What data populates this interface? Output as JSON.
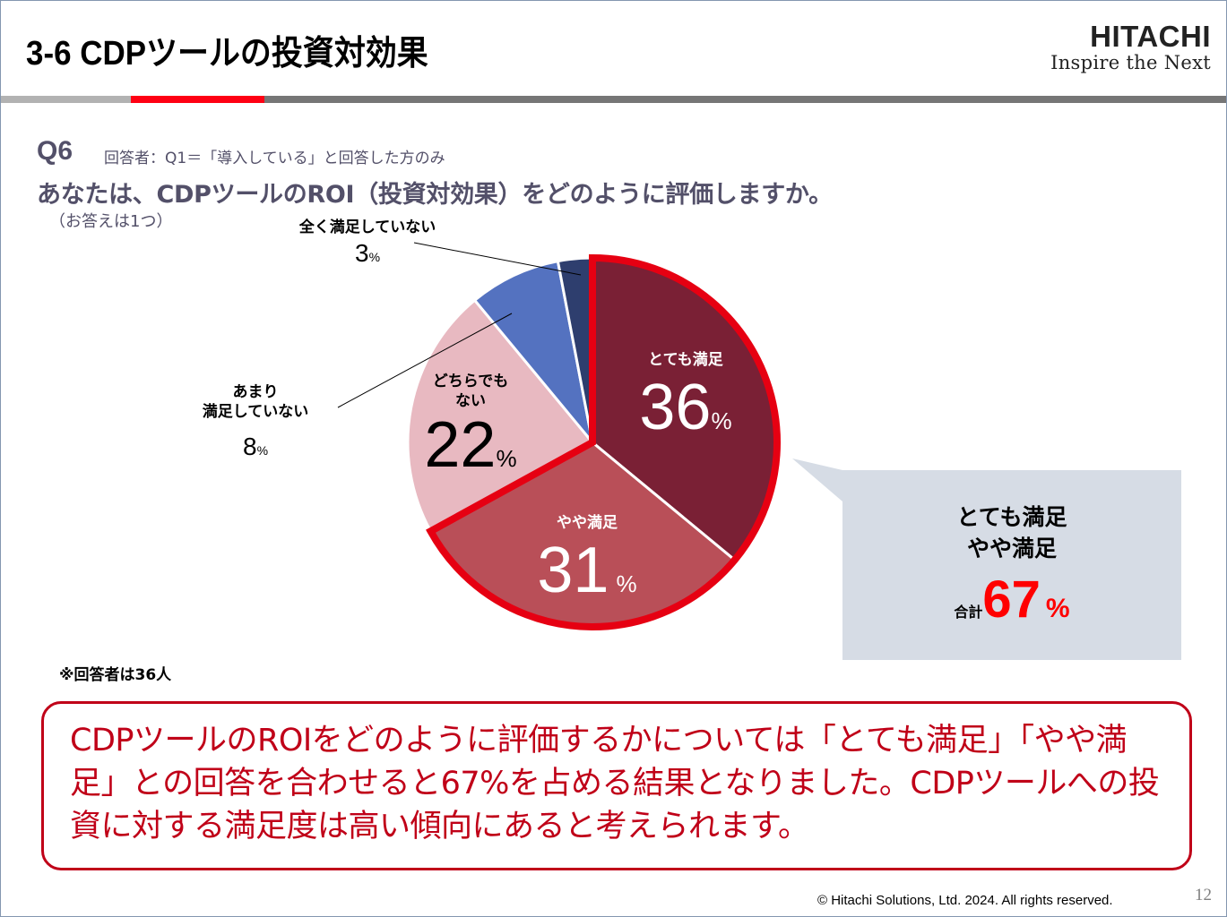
{
  "header": {
    "title": "3-6  CDPツールの投資対効果",
    "logo_main": "HITACHI",
    "logo_sub": "Inspire the Next"
  },
  "question": {
    "number": "Q6",
    "respondents_condition": "回答者：Q1＝「導入している」と回答した方のみ",
    "text": "あなたは、CDPツールのROI（投資対効果）をどのように評価しますか。",
    "note": "（お答えは1つ）"
  },
  "chart_data": {
    "type": "pie",
    "title": "あなたは、CDPツールのROI（投資対効果）をどのように評価しますか。",
    "unit": "%",
    "start_angle": "top, clockwise",
    "categories": [
      "とても満足",
      "やや満足",
      "どちらでもない",
      "あまり満足していない",
      "全く満足していない"
    ],
    "values": [
      36,
      31,
      22,
      8,
      3
    ],
    "colors": [
      "#7a2035",
      "#b94f58",
      "#e8b9c1",
      "#5472c0",
      "#2e3e6e"
    ],
    "highlight_outline_color": "#e60012",
    "highlighted_categories": [
      "とても満足",
      "やや満足"
    ],
    "labels": [
      {
        "name_lines": [
          "とても満足"
        ],
        "value": "36",
        "sign": "%"
      },
      {
        "name_lines": [
          "やや満足"
        ],
        "value": "31",
        "sign": "%"
      },
      {
        "name_lines": [
          "どちらでも",
          "ない"
        ],
        "value": "22",
        "sign": "%"
      },
      {
        "name_lines": [
          "あまり",
          "満足していない"
        ],
        "value": "8",
        "sign": "%"
      },
      {
        "name_lines": [
          "全く満足していない"
        ],
        "value": "3",
        "sign": "%"
      }
    ]
  },
  "callout": {
    "line1": "とても満足",
    "line2": "やや満足",
    "total_label": "合計",
    "total_value": "67",
    "total_sign": "%"
  },
  "respondents_note": "※回答者は36人",
  "summary": "CDPツールのROIをどのように評価するかについては「とても満足」「やや満足」との回答を合わせると67%を占める結果となりました。CDPツールへの投資に対する満足度は高い傾向にあると考えられます。",
  "footer": {
    "copyright": "© Hitachi Solutions, Ltd. 2024. All rights reserved.",
    "page_number": "12"
  }
}
